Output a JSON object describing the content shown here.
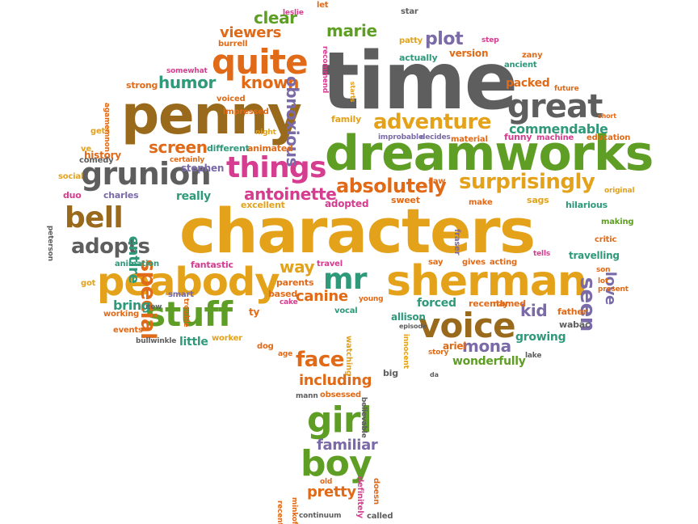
{
  "palette": {
    "brown": "#9a6a1c",
    "gold": "#e3a21a",
    "orange": "#e06a17",
    "green": "#5f9e24",
    "teal": "#2f9a7a",
    "gray": "#5e5e5e",
    "purple": "#7a6aa8",
    "pink": "#d63c8f"
  },
  "words": [
    {
      "text": "time",
      "c": "gray"
    },
    {
      "text": "characters",
      "c": "gold"
    },
    {
      "text": "penny",
      "c": "brown"
    },
    {
      "text": "dreamworks",
      "c": "green"
    },
    {
      "text": "sherman",
      "c": "gold"
    },
    {
      "text": "peabody",
      "c": "gold"
    },
    {
      "text": "voice",
      "c": "brown"
    },
    {
      "text": "stuff",
      "c": "green"
    },
    {
      "text": "quite",
      "c": "orange"
    },
    {
      "text": "great",
      "c": "gray"
    },
    {
      "text": "grunion",
      "c": "gray"
    },
    {
      "text": "things",
      "c": "pink"
    },
    {
      "text": "girl",
      "c": "green"
    },
    {
      "text": "boy",
      "c": "green"
    },
    {
      "text": "bell",
      "c": "brown"
    },
    {
      "text": "mr",
      "c": "teal"
    },
    {
      "text": "adventure",
      "c": "gold"
    },
    {
      "text": "surprisingly",
      "c": "gold"
    },
    {
      "text": "seen",
      "c": "purple"
    },
    {
      "text": "adopts",
      "c": "gray"
    },
    {
      "text": "special",
      "c": "orange"
    },
    {
      "text": "absolutely",
      "c": "orange"
    },
    {
      "text": "antoinette",
      "c": "pink"
    },
    {
      "text": "screen",
      "c": "orange"
    },
    {
      "text": "humor",
      "c": "teal"
    },
    {
      "text": "known",
      "c": "orange"
    },
    {
      "text": "clear",
      "c": "green"
    },
    {
      "text": "plot",
      "c": "purple"
    },
    {
      "text": "marie",
      "c": "green"
    },
    {
      "text": "viewers",
      "c": "orange"
    },
    {
      "text": "obnoxious",
      "c": "purple"
    },
    {
      "text": "face",
      "c": "orange"
    },
    {
      "text": "including",
      "c": "orange"
    },
    {
      "text": "familiar",
      "c": "purple"
    },
    {
      "text": "pretty",
      "c": "orange"
    },
    {
      "text": "canine",
      "c": "orange"
    },
    {
      "text": "way",
      "c": "gold"
    },
    {
      "text": "mona",
      "c": "purple"
    },
    {
      "text": "kid",
      "c": "purple"
    },
    {
      "text": "commendable",
      "c": "teal"
    },
    {
      "text": "packed",
      "c": "orange"
    },
    {
      "text": "love",
      "c": "purple"
    },
    {
      "text": "entire",
      "c": "teal"
    },
    {
      "text": "wonderfully",
      "c": "green"
    },
    {
      "text": "forced",
      "c": "teal"
    },
    {
      "text": "bring",
      "c": "teal"
    },
    {
      "text": "little",
      "c": "teal"
    },
    {
      "text": "growing",
      "c": "teal"
    },
    {
      "text": "really",
      "c": "teal"
    },
    {
      "text": "version",
      "c": "orange"
    },
    {
      "text": "stephen",
      "c": "purple"
    },
    {
      "text": "history",
      "c": "orange"
    },
    {
      "text": "different",
      "c": "teal"
    },
    {
      "text": "animated",
      "c": "orange"
    },
    {
      "text": "family",
      "c": "gold"
    },
    {
      "text": "strong",
      "c": "orange"
    },
    {
      "text": "actually",
      "c": "teal"
    },
    {
      "text": "fantastic",
      "c": "pink"
    },
    {
      "text": "charles",
      "c": "purple"
    },
    {
      "text": "duo",
      "c": "pink"
    },
    {
      "text": "hilarious",
      "c": "teal"
    },
    {
      "text": "making",
      "c": "green"
    },
    {
      "text": "critic",
      "c": "orange"
    },
    {
      "text": "fraser",
      "c": "purple"
    },
    {
      "text": "travelling",
      "c": "teal"
    },
    {
      "text": "father",
      "c": "orange"
    },
    {
      "text": "wabac",
      "c": "gray"
    },
    {
      "text": "ariel",
      "c": "orange"
    },
    {
      "text": "allison",
      "c": "teal"
    },
    {
      "text": "recently",
      "c": "orange"
    },
    {
      "text": "named",
      "c": "orange"
    },
    {
      "text": "adopted",
      "c": "pink"
    },
    {
      "text": "excellent",
      "c": "gold"
    },
    {
      "text": "sweet",
      "c": "orange"
    },
    {
      "text": "saw",
      "c": "orange"
    },
    {
      "text": "make",
      "c": "orange"
    },
    {
      "text": "sags",
      "c": "gold"
    },
    {
      "text": "original",
      "c": "gold"
    },
    {
      "text": "funny",
      "c": "pink"
    },
    {
      "text": "machine",
      "c": "pink"
    },
    {
      "text": "education",
      "c": "orange"
    },
    {
      "text": "decides",
      "c": "purple"
    },
    {
      "text": "material",
      "c": "orange"
    },
    {
      "text": "improbable",
      "c": "purple"
    },
    {
      "text": "short",
      "c": "orange"
    },
    {
      "text": "future",
      "c": "orange"
    },
    {
      "text": "ancient",
      "c": "teal"
    },
    {
      "text": "zany",
      "c": "orange"
    },
    {
      "text": "step",
      "c": "pink"
    },
    {
      "text": "patty",
      "c": "gold"
    },
    {
      "text": "star",
      "c": "gray"
    },
    {
      "text": "let",
      "c": "orange"
    },
    {
      "text": "leslie",
      "c": "pink"
    },
    {
      "text": "burrell",
      "c": "orange"
    },
    {
      "text": "somewhat",
      "c": "pink"
    },
    {
      "text": "voiced",
      "c": "orange"
    },
    {
      "text": "impressed",
      "c": "orange"
    },
    {
      "text": "recommend",
      "c": "pink"
    },
    {
      "text": "starts",
      "c": "gold"
    },
    {
      "text": "night",
      "c": "gold"
    },
    {
      "text": "ve",
      "c": "gold"
    },
    {
      "text": "gets",
      "c": "gold"
    },
    {
      "text": "agamemnon",
      "c": "orange"
    },
    {
      "text": "comedy",
      "c": "gray"
    },
    {
      "text": "certainly",
      "c": "orange"
    },
    {
      "text": "social",
      "c": "gold"
    },
    {
      "text": "peterson",
      "c": "gray"
    },
    {
      "text": "animation",
      "c": "teal"
    },
    {
      "text": "got",
      "c": "gold"
    },
    {
      "text": "new",
      "c": "gray"
    },
    {
      "text": "smart",
      "c": "purple"
    },
    {
      "text": "working",
      "c": "orange"
    },
    {
      "text": "events",
      "c": "orange"
    },
    {
      "text": "bullwinkle",
      "c": "gray"
    },
    {
      "text": "ty",
      "c": "orange"
    },
    {
      "text": "trouble",
      "c": "orange"
    },
    {
      "text": "worker",
      "c": "gold"
    },
    {
      "text": "dog",
      "c": "orange"
    },
    {
      "text": "age",
      "c": "orange"
    },
    {
      "text": "watching",
      "c": "gold"
    },
    {
      "text": "parents",
      "c": "orange"
    },
    {
      "text": "based",
      "c": "orange"
    },
    {
      "text": "cake",
      "c": "pink"
    },
    {
      "text": "travel",
      "c": "pink"
    },
    {
      "text": "young",
      "c": "orange"
    },
    {
      "text": "vocal",
      "c": "teal"
    },
    {
      "text": "episode",
      "c": "gray"
    },
    {
      "text": "say",
      "c": "orange"
    },
    {
      "text": "gives",
      "c": "orange"
    },
    {
      "text": "acting",
      "c": "orange"
    },
    {
      "text": "tells",
      "c": "pink"
    },
    {
      "text": "son",
      "c": "orange"
    },
    {
      "text": "lot",
      "c": "orange"
    },
    {
      "text": "present",
      "c": "orange"
    },
    {
      "text": "innocent",
      "c": "gold"
    },
    {
      "text": "story",
      "c": "orange"
    },
    {
      "text": "lake",
      "c": "gray"
    },
    {
      "text": "big",
      "c": "gray"
    },
    {
      "text": "mann",
      "c": "gray"
    },
    {
      "text": "obsessed",
      "c": "orange"
    },
    {
      "text": "believable",
      "c": "gray"
    },
    {
      "text": "da",
      "c": "gray"
    },
    {
      "text": "recent",
      "c": "orange"
    },
    {
      "text": "minkoff",
      "c": "orange"
    },
    {
      "text": "old",
      "c": "orange"
    },
    {
      "text": "definitely",
      "c": "pink"
    },
    {
      "text": "doesn",
      "c": "orange"
    },
    {
      "text": "continuum",
      "c": "gray"
    },
    {
      "text": "called",
      "c": "gray"
    }
  ]
}
